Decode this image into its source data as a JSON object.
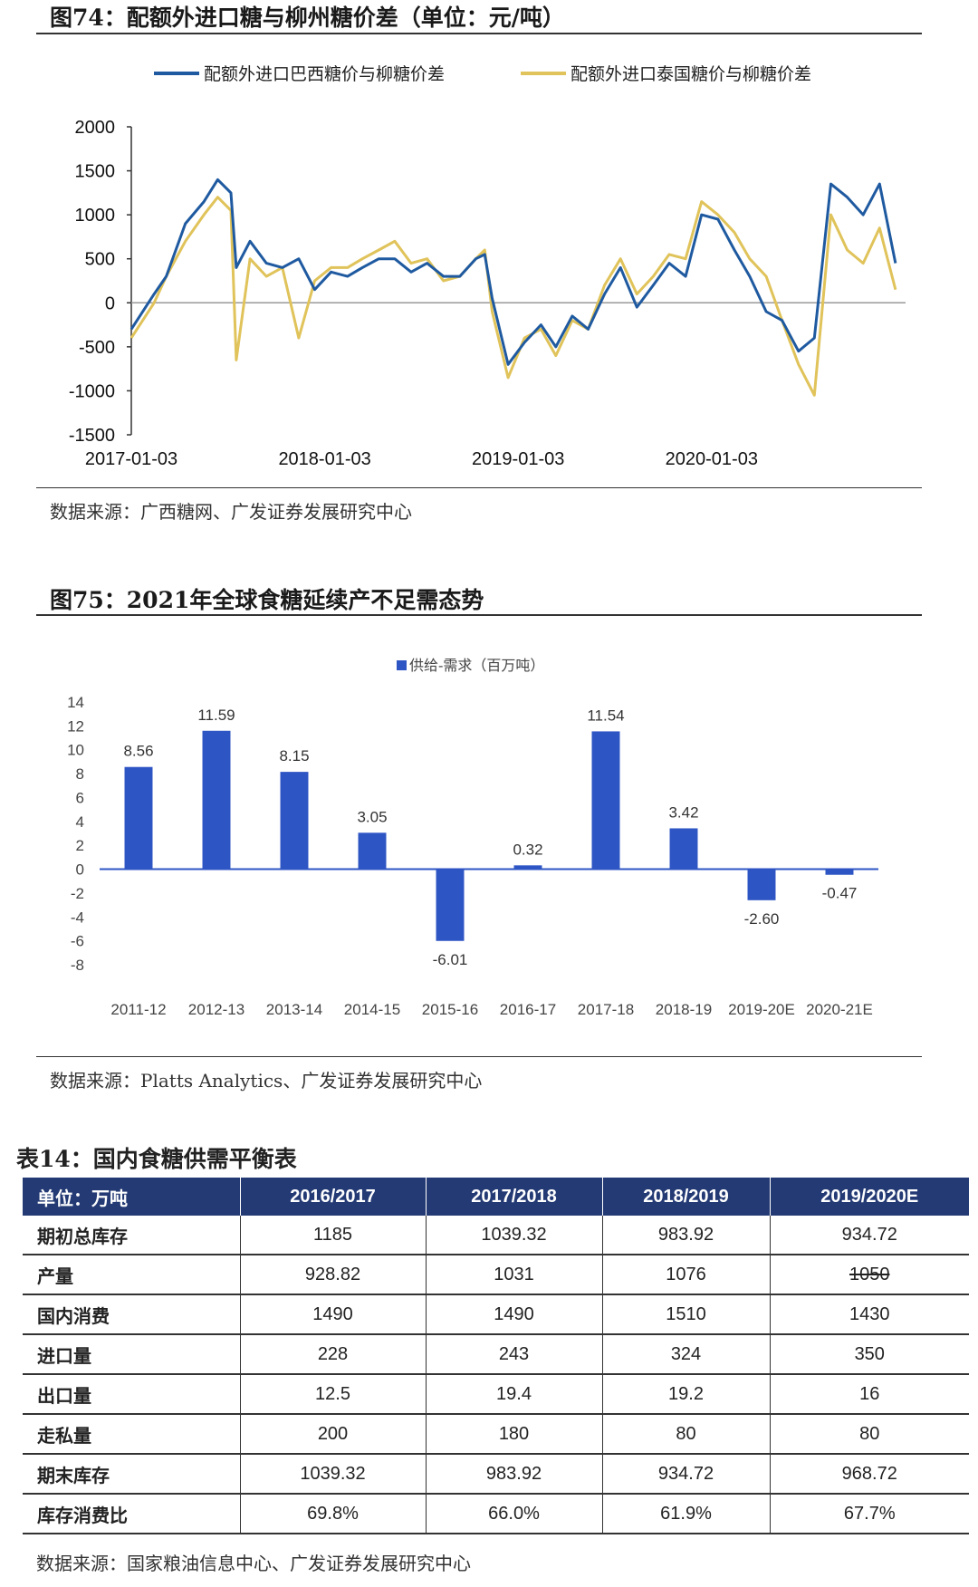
{
  "fig74": {
    "title": "图74：配额外进口糖与柳州糖价差（单位：元/吨）",
    "source": "数据来源：广西糖网、广发证券发展研究中心"
  },
  "fig75": {
    "title": "图75：2021年全球食糖延续产不足需态势",
    "source": "数据来源：Platts Analytics、广发证券发展研究中心"
  },
  "table14": {
    "title": "表14：国内食糖供需平衡表",
    "header": [
      "单位：万吨",
      "2016/2017",
      "2017/2018",
      "2018/2019",
      "2019/2020E"
    ],
    "rows": [
      {
        "label": "期初总库存",
        "values": [
          "1185",
          "1039.32",
          "983.92",
          "934.72"
        ]
      },
      {
        "label": "产量",
        "values": [
          "928.82",
          "1031",
          "1076",
          "1050"
        ]
      },
      {
        "label": "国内消费",
        "values": [
          "1490",
          "1490",
          "1510",
          "1430"
        ]
      },
      {
        "label": "进口量",
        "values": [
          "228",
          "243",
          "324",
          "350"
        ]
      },
      {
        "label": "出口量",
        "values": [
          "12.5",
          "19.4",
          "19.2",
          "16"
        ]
      },
      {
        "label": "走私量",
        "values": [
          "200",
          "180",
          "80",
          "80"
        ]
      },
      {
        "label": "期末库存",
        "values": [
          "1039.32",
          "983.92",
          "934.72",
          "968.72"
        ]
      },
      {
        "label": "库存消费比",
        "values": [
          "69.8%",
          "66.0%",
          "61.9%",
          "67.7%"
        ]
      }
    ],
    "struck_cell": "产量/2019/2020E",
    "source": "数据来源：国家粮油信息中心、广发证券发展研究中心"
  },
  "chart_data": [
    {
      "type": "line",
      "title": "",
      "xlabel": "",
      "ylabel": "",
      "ylim": [
        -1500,
        2000
      ],
      "yticks": [
        "2000",
        "1500",
        "1000",
        "500",
        "0",
        "-500",
        "-1000",
        "-1500"
      ],
      "xticks": [
        "2017-01-03",
        "2018-01-03",
        "2019-01-03",
        "2020-01-03"
      ],
      "legend": "top",
      "colors": {
        "brazil": "#1f5aa0",
        "thailand": "#e0c35a"
      },
      "x_dates": [
        "2017-01-03",
        "2017-02-15",
        "2017-03-10",
        "2017-04-15",
        "2017-05-20",
        "2017-06-15",
        "2017-07-10",
        "2017-07-20",
        "2017-08-15",
        "2017-09-15",
        "2017-10-15",
        "2017-11-15",
        "2017-12-15",
        "2018-01-15",
        "2018-02-15",
        "2018-03-15",
        "2018-04-15",
        "2018-05-15",
        "2018-06-15",
        "2018-07-15",
        "2018-08-15",
        "2018-09-15",
        "2018-10-15",
        "2018-11-01",
        "2018-11-15",
        "2018-12-15",
        "2019-01-15",
        "2019-02-15",
        "2019-03-15",
        "2019-04-15",
        "2019-05-15",
        "2019-06-15",
        "2019-07-15",
        "2019-08-15",
        "2019-09-15",
        "2019-10-15",
        "2019-11-15",
        "2019-12-15",
        "2020-01-15",
        "2020-02-15",
        "2020-03-15",
        "2020-04-15",
        "2020-05-15",
        "2020-06-15",
        "2020-07-15",
        "2020-08-15",
        "2020-09-15",
        "2020-10-15",
        "2020-11-15",
        "2020-12-15"
      ],
      "series": [
        {
          "name": "配额外进口巴西糖价与柳糖价差",
          "values": [
            -300,
            100,
            300,
            900,
            1150,
            1400,
            1250,
            400,
            700,
            450,
            400,
            500,
            150,
            350,
            300,
            400,
            500,
            500,
            350,
            450,
            300,
            300,
            500,
            550,
            50,
            -700,
            -450,
            -250,
            -500,
            -150,
            -300,
            100,
            400,
            -50,
            200,
            450,
            300,
            1000,
            950,
            600,
            300,
            -100,
            -200,
            -550,
            -400,
            1350,
            1200,
            1000,
            1350,
            450
          ]
        },
        {
          "name": "配额外进口泰国糖价与柳糖价差",
          "values": [
            -400,
            0,
            300,
            700,
            1000,
            1200,
            1050,
            -650,
            500,
            300,
            400,
            -400,
            250,
            400,
            400,
            500,
            600,
            700,
            450,
            500,
            250,
            300,
            500,
            600,
            -100,
            -850,
            -400,
            -300,
            -600,
            -200,
            -300,
            200,
            500,
            100,
            300,
            550,
            500,
            1150,
            1000,
            800,
            500,
            300,
            -200,
            -700,
            -1050,
            1000,
            600,
            450,
            850,
            150
          ]
        }
      ]
    },
    {
      "type": "bar",
      "title": "",
      "xlabel": "",
      "ylabel": "",
      "ylim": [
        -8,
        14
      ],
      "yticks": [
        "14",
        "12",
        "10",
        "8",
        "6",
        "4",
        "2",
        "0",
        "-2",
        "-4",
        "-6",
        "-8"
      ],
      "legend": "top",
      "color": "#2e55c4",
      "categories": [
        "2011-12",
        "2012-13",
        "2013-14",
        "2014-15",
        "2015-16",
        "2016-17",
        "2017-18",
        "2018-19",
        "2019-20E",
        "2020-21E"
      ],
      "series": [
        {
          "name": "供给-需求（百万吨）",
          "values": [
            8.56,
            11.59,
            8.15,
            3.05,
            -6.01,
            0.32,
            11.54,
            3.42,
            -2.6,
            -0.47
          ],
          "labels": [
            "8.56",
            "11.59",
            "8.15",
            "3.05",
            "-6.01",
            "0.32",
            "11.54",
            "3.42",
            "-2.60",
            "-0.47"
          ]
        }
      ]
    }
  ]
}
